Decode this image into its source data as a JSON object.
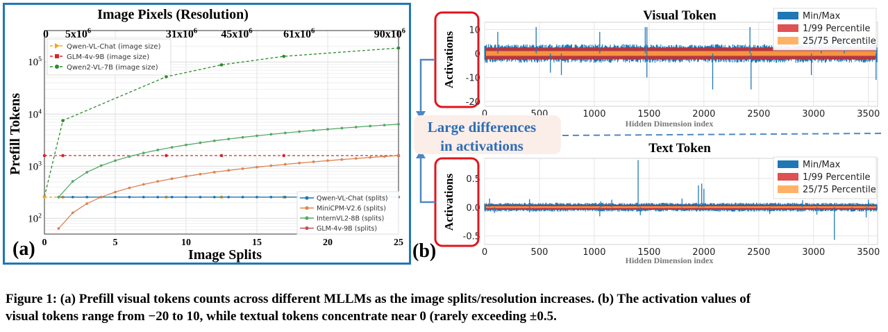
{
  "panel_a": {
    "label": "(a)",
    "top_axis_title": "Image Pixels (Resolution)",
    "top_ticks": [
      {
        "base": "0",
        "exp": ""
      },
      {
        "base": "5x10",
        "exp": "6"
      },
      {
        "base": "31x10",
        "exp": "6"
      },
      {
        "base": "45x10",
        "exp": "6"
      },
      {
        "base": "61x10",
        "exp": "6"
      },
      {
        "base": "90x10",
        "exp": "6"
      }
    ],
    "ylabel": "Prefill Tokens",
    "xlabel": "Image Splits",
    "ytick_labels": [
      {
        "base": "10",
        "exp": "5"
      },
      {
        "base": "10",
        "exp": "4"
      },
      {
        "base": "10",
        "exp": "3"
      },
      {
        "base": "10",
        "exp": "2"
      }
    ]
  },
  "panel_b": {
    "label": "(b)",
    "annotation_line1": "Large differences",
    "annotation_line2": "in activations",
    "visual_title": "Visual Token",
    "text_title": "Text Token",
    "ylabel": "Activations",
    "xlabel": "Hidden Dimension index",
    "legend": [
      "Min/Max",
      "1/99 Percentile",
      "25/75 Percentile"
    ]
  },
  "caption": {
    "line1": "Figure 1: (a) Prefill visual tokens counts across different MLLMs as the image splits/resolution increases. (b) The activation values of",
    "line2": "visual tokens range from −20 to 10, while textual tokens concentrate near 0 (rarely exceeding ±0.5."
  },
  "colors": {
    "blue": "#1f77b4",
    "orange": "#dd8452",
    "green": "#55a868",
    "red": "#c44e52",
    "qwen2": "#2a8a2a",
    "glm": "#d62728",
    "qwen_vl": "#f5a623",
    "frame": "#1f77b4",
    "highlight": "#e0141c",
    "arrow": "#4f86c6"
  },
  "chart_data": [
    {
      "type": "line",
      "id": "prefill_tokens",
      "xlabel": "Image Splits",
      "ylabel": "Prefill Tokens",
      "secondary_xlabel": "Image Pixels (Resolution)",
      "xlim": [
        0,
        25
      ],
      "ylim": [
        50,
        400000
      ],
      "log_y": true,
      "grid": true,
      "xticks": [
        0,
        5,
        10,
        15,
        20,
        25
      ],
      "legend_upper": {
        "position": "upper-left",
        "entries": [
          "Qwen-VL-Chat (image size)",
          "GLM-4v-9B (image size)",
          "Qwen2-VL-7B (image size)"
        ]
      },
      "legend_lower": {
        "position": "lower-right",
        "entries": [
          "Qwen-VL-Chat (splits)",
          "MiniCPM-V2.6 (splits)",
          "InternVL2-8B (splits)",
          "GLM-4v-9B (splits)"
        ]
      },
      "series": [
        {
          "name": "Qwen2-VL-7B (image size)",
          "style": "dashed",
          "x": [
            0,
            1.3,
            8.6,
            12.5,
            16.9,
            25
          ],
          "y": [
            260,
            7500,
            52000,
            88000,
            128000,
            185000
          ]
        },
        {
          "name": "GLM-4v-9B (image size)",
          "style": "dashed",
          "x": [
            0,
            1.3,
            8.6,
            12.5,
            16.9,
            25
          ],
          "y": [
            1600,
            1600,
            1600,
            1600,
            1600,
            1600
          ]
        },
        {
          "name": "Qwen-VL-Chat (image size)",
          "style": "dashed",
          "x": [
            0,
            1.3,
            8.6,
            12.5,
            16.9,
            25
          ],
          "y": [
            256,
            256,
            256,
            256,
            256,
            256
          ]
        },
        {
          "name": "Qwen-VL-Chat (splits)",
          "style": "solid",
          "x": [
            1,
            2,
            3,
            4,
            5,
            6,
            7,
            8,
            9,
            10,
            11,
            12,
            13,
            14,
            15,
            16,
            17,
            18,
            19,
            20,
            21,
            22,
            23,
            24,
            25
          ],
          "y": [
            256,
            256,
            256,
            256,
            256,
            256,
            256,
            256,
            256,
            256,
            256,
            256,
            256,
            256,
            256,
            256,
            256,
            256,
            256,
            256,
            256,
            256,
            256,
            256,
            256
          ]
        },
        {
          "name": "MiniCPM-V2.6 (splits)",
          "style": "solid",
          "x": [
            1,
            2,
            3,
            4,
            5,
            6,
            7,
            8,
            9,
            10,
            11,
            12,
            13,
            14,
            15,
            16,
            17,
            18,
            19,
            20,
            21,
            22,
            23,
            24,
            25
          ],
          "y": [
            64,
            128,
            192,
            256,
            320,
            384,
            448,
            512,
            576,
            640,
            704,
            768,
            832,
            896,
            960,
            1024,
            1088,
            1152,
            1216,
            1280,
            1344,
            1408,
            1472,
            1536,
            1600
          ]
        },
        {
          "name": "InternVL2-8B (splits)",
          "style": "solid",
          "x": [
            1,
            2,
            3,
            4,
            5,
            6,
            7,
            8,
            9,
            10,
            11,
            12,
            13,
            14,
            15,
            16,
            17,
            18,
            19,
            20,
            21,
            22,
            23,
            24,
            25
          ],
          "y": [
            256,
            512,
            768,
            1024,
            1280,
            1536,
            1792,
            2048,
            2304,
            2560,
            2816,
            3072,
            3328,
            3584,
            3840,
            4096,
            4352,
            4608,
            4864,
            5120,
            5376,
            5632,
            5888,
            6144,
            6400
          ]
        },
        {
          "name": "GLM-4v-9B (splits)",
          "style": "solid",
          "x": [],
          "y": []
        }
      ]
    },
    {
      "type": "area",
      "id": "visual_token_activations",
      "title": "Visual Token",
      "xlabel": "Hidden Dimension index",
      "ylabel": "Activations",
      "xlim": [
        0,
        3584
      ],
      "ylim": [
        -22,
        13
      ],
      "xticks": [
        0,
        500,
        1000,
        1500,
        2000,
        2500,
        3000,
        3500
      ],
      "yticks": [
        -20,
        -10,
        0,
        10
      ],
      "grid": true,
      "legend": "top-right",
      "series": [
        {
          "name": "Min/Max",
          "typical": [
            -3,
            3
          ],
          "spike_max": [
            [
              120,
              9
            ],
            [
              470,
              11
            ],
            [
              1050,
              9
            ],
            [
              1465,
              11
            ],
            [
              1480,
              11
            ],
            [
              2420,
              11
            ],
            [
              3070,
              11
            ],
            [
              3280,
              11
            ]
          ],
          "spike_min": [
            [
              600,
              -8
            ],
            [
              700,
              -9
            ],
            [
              1480,
              -10
            ],
            [
              2080,
              -15
            ],
            [
              2430,
              -15
            ],
            [
              2980,
              -9
            ],
            [
              3570,
              -11
            ]
          ]
        },
        {
          "name": "1/99 Percentile",
          "range": [
            -2.5,
            2.5
          ]
        },
        {
          "name": "25/75 Percentile",
          "range": [
            -1,
            1
          ]
        }
      ]
    },
    {
      "type": "area",
      "id": "text_token_activations",
      "title": "Text Token",
      "xlabel": "Hidden Dimension index",
      "ylabel": "Activations",
      "xlim": [
        0,
        3584
      ],
      "ylim": [
        -0.65,
        0.85
      ],
      "xticks": [
        0,
        500,
        1000,
        1500,
        2000,
        2500,
        3000,
        3500
      ],
      "yticks": [
        -0.5,
        0.0,
        0.5
      ],
      "grid": true,
      "legend": "top-right",
      "series": [
        {
          "name": "Min/Max",
          "typical": [
            -0.06,
            0.06
          ],
          "spike_max": [
            [
              45,
              0.15
            ],
            [
              410,
              0.14
            ],
            [
              1060,
              0.1
            ],
            [
              1160,
              0.13
            ],
            [
              1400,
              0.82
            ],
            [
              1800,
              0.15
            ],
            [
              1950,
              0.38
            ],
            [
              1980,
              0.41
            ],
            [
              2000,
              0.32
            ],
            [
              2900,
              0.12
            ],
            [
              3500,
              0.13
            ]
          ],
          "spike_min": [
            [
              90,
              -0.1
            ],
            [
              410,
              -0.09
            ],
            [
              1050,
              -0.16
            ],
            [
              1420,
              -0.14
            ],
            [
              2600,
              -0.12
            ],
            [
              3030,
              -0.13
            ],
            [
              3190,
              -0.57
            ],
            [
              3350,
              -0.08
            ],
            [
              3480,
              -0.18
            ]
          ]
        },
        {
          "name": "1/99 Percentile",
          "range": [
            -0.04,
            0.04
          ]
        },
        {
          "name": "25/75 Percentile",
          "range": [
            -0.015,
            0.015
          ]
        }
      ]
    }
  ]
}
